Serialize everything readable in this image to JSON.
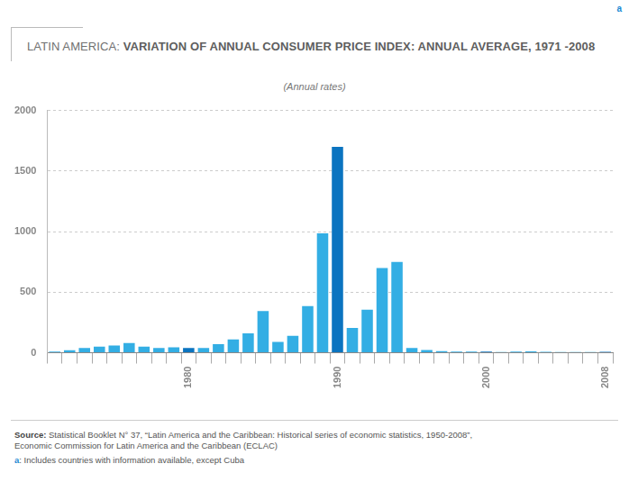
{
  "chart_data": {
    "type": "bar",
    "title": "LATIN AMERICA: VARIATION OF ANNUAL CONSUMER PRICE INDEX: ANNUAL AVERAGE, 1971 -2008",
    "title_marker": "a",
    "subtitle": "(Annual rates)",
    "categories": [
      null,
      null,
      null,
      null,
      null,
      null,
      null,
      null,
      null,
      "1980",
      null,
      null,
      null,
      null,
      null,
      null,
      null,
      null,
      null,
      "1990",
      null,
      null,
      null,
      null,
      null,
      null,
      null,
      null,
      null,
      "2000",
      null,
      null,
      null,
      null,
      null,
      null,
      null,
      "2008"
    ],
    "values": [
      10,
      20,
      40,
      50,
      60,
      80,
      50,
      40,
      45,
      40,
      40,
      70,
      110,
      160,
      345,
      90,
      140,
      385,
      985,
      1700,
      205,
      355,
      700,
      750,
      40,
      22,
      14,
      10,
      9,
      9,
      6,
      9,
      11,
      7,
      6,
      5,
      5,
      8
    ],
    "colors": [
      "#33aee4",
      "#33aee4",
      "#33aee4",
      "#33aee4",
      "#33aee4",
      "#33aee4",
      "#33aee4",
      "#33aee4",
      "#33aee4",
      "#0b74c0",
      "#33aee4",
      "#33aee4",
      "#33aee4",
      "#33aee4",
      "#33aee4",
      "#33aee4",
      "#33aee4",
      "#33aee4",
      "#33aee4",
      "#0b74c0",
      "#33aee4",
      "#33aee4",
      "#33aee4",
      "#33aee4",
      "#33aee4",
      "#33aee4",
      "#33aee4",
      "#33aee4",
      "#33aee4",
      "#0b74c0",
      "#33aee4",
      "#33aee4",
      "#33aee4",
      "#33aee4",
      "#33aee4",
      "#33aee4",
      "#33aee4",
      "#0b74c0"
    ],
    "ylim": [
      0,
      2000
    ],
    "yticks": [
      0,
      500,
      1000,
      1500,
      2000
    ],
    "grid": true,
    "source_label": "Source:",
    "source": [
      "Statistical Booklet N° 37, “Latin America and the Caribbean: Historical series of economic statistics, 1950-2008”,",
      "Economic Commission for Latin America and the Caribbean (ECLAC)"
    ],
    "footnote_marker": "a",
    "footnote": ": Includes countries with information available, except Cuba"
  }
}
